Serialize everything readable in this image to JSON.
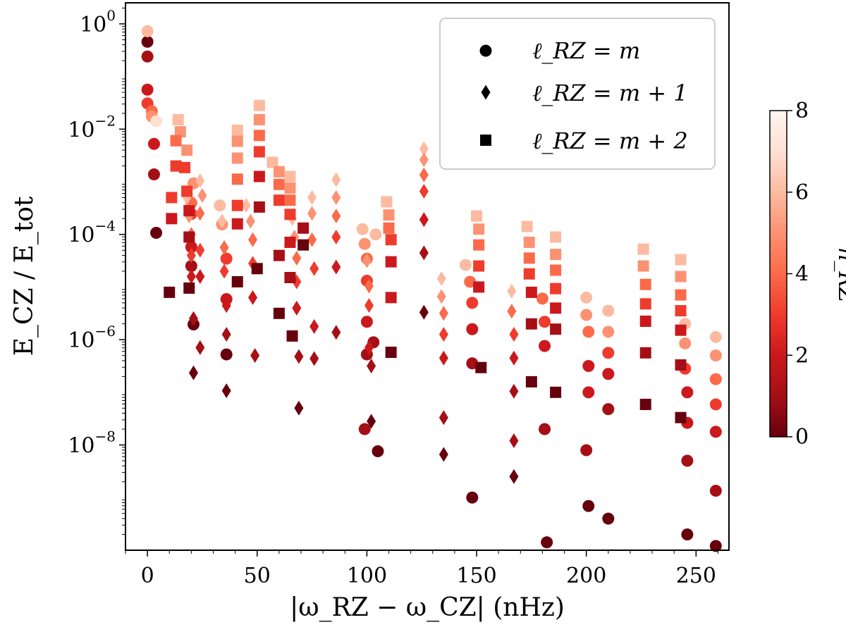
{
  "chart_data": {
    "type": "scatter",
    "title": "",
    "xlabel": "|ω_RZ − ω_CZ| (nHz)",
    "ylabel": "E_CZ / E_tot",
    "xlim": [
      -10,
      265
    ],
    "ylim_log10": [
      -10,
      0.4
    ],
    "yscale": "log",
    "x_ticks": [
      0,
      50,
      100,
      150,
      200,
      250
    ],
    "x_tick_labels": [
      "0",
      "50",
      "100",
      "150",
      "200",
      "250"
    ],
    "y_ticks_log10": [
      0,
      -2,
      -4,
      -6,
      -8
    ],
    "y_tick_labels": [
      {
        "base": "10",
        "exp": "0"
      },
      {
        "base": "10",
        "exp": "−2"
      },
      {
        "base": "10",
        "exp": "−4"
      },
      {
        "base": "10",
        "exp": "−6"
      },
      {
        "base": "10",
        "exp": "−8"
      }
    ],
    "legend": {
      "position": "top-right",
      "entries": [
        {
          "marker": "circle",
          "label": "ℓ_RZ = m"
        },
        {
          "marker": "diamond",
          "label": "ℓ_RZ = m + 1"
        },
        {
          "marker": "square",
          "label": "ℓ_RZ = m + 2"
        }
      ]
    },
    "colorbar": {
      "label": "n_RZ",
      "range": [
        0,
        8
      ],
      "ticks": [
        0,
        2,
        4,
        6,
        8
      ],
      "colormap": [
        "#67000d",
        "#a50f15",
        "#cb181d",
        "#ef3b2c",
        "#fb6a4a",
        "#fc9272",
        "#fcbba1",
        "#fee0d2",
        "#fff5f0"
      ]
    },
    "series": [
      {
        "name": "ℓ_RZ = m",
        "marker": "circle",
        "points": [
          [
            0,
            -0.34,
            0
          ],
          [
            0,
            -0.62,
            1
          ],
          [
            0,
            -1.25,
            2
          ],
          [
            0,
            -1.51,
            3
          ],
          [
            2,
            -1.66,
            4
          ],
          [
            2,
            -1.76,
            5
          ],
          [
            0,
            -0.14,
            6
          ],
          [
            4,
            -1.85,
            7
          ],
          [
            3,
            -2.28,
            2
          ],
          [
            3,
            -2.86,
            1
          ],
          [
            4,
            -3.97,
            0
          ],
          [
            20,
            -3.4,
            4
          ],
          [
            21,
            -3.03,
            5
          ],
          [
            20,
            -3.61,
            3
          ],
          [
            20,
            -4.24,
            2
          ],
          [
            20,
            -4.6,
            1
          ],
          [
            21,
            -5.71,
            0
          ],
          [
            33,
            -3.45,
            6
          ],
          [
            34,
            -3.81,
            5
          ],
          [
            36,
            -4.46,
            3
          ],
          [
            36,
            -5.23,
            2
          ],
          [
            36,
            -6.28,
            0
          ],
          [
            98,
            -3.9,
            6
          ],
          [
            99,
            -4.18,
            5
          ],
          [
            100,
            -4.46,
            4
          ],
          [
            100,
            -4.88,
            3
          ],
          [
            100,
            -5.66,
            2
          ],
          [
            100,
            -6.28,
            1
          ],
          [
            99,
            -7.7,
            1
          ],
          [
            104,
            -4.0,
            6
          ],
          [
            103,
            -6.05,
            1
          ],
          [
            105,
            -8.12,
            0
          ],
          [
            145,
            -4.58,
            6
          ],
          [
            147,
            -4.9,
            4
          ],
          [
            148,
            -5.3,
            3
          ],
          [
            148,
            -5.8,
            2
          ],
          [
            148,
            -6.45,
            1
          ],
          [
            148,
            -9.0,
            0
          ],
          [
            180,
            -5.22,
            4
          ],
          [
            181,
            -5.66,
            3
          ],
          [
            181,
            -6.12,
            2
          ],
          [
            181,
            -7.7,
            1
          ],
          [
            182,
            -9.85,
            0
          ],
          [
            200,
            -5.2,
            6
          ],
          [
            200,
            -5.53,
            5
          ],
          [
            201,
            -5.85,
            4
          ],
          [
            201,
            -6.5,
            2
          ],
          [
            201,
            -7.0,
            2
          ],
          [
            200,
            -8.1,
            1
          ],
          [
            201,
            -9.16,
            0
          ],
          [
            210,
            -5.45,
            6
          ],
          [
            210,
            -5.85,
            5
          ],
          [
            210,
            -6.25,
            3
          ],
          [
            210,
            -6.65,
            2
          ],
          [
            210,
            -7.32,
            1
          ],
          [
            210,
            -9.4,
            0
          ],
          [
            245,
            -5.7,
            6
          ],
          [
            245,
            -6.07,
            5
          ],
          [
            245,
            -6.55,
            3
          ],
          [
            246,
            -7.0,
            2
          ],
          [
            246,
            -7.58,
            2
          ],
          [
            246,
            -8.3,
            1
          ],
          [
            246,
            -9.7,
            0
          ],
          [
            259,
            -5.95,
            6
          ],
          [
            259,
            -6.3,
            5
          ],
          [
            259,
            -6.75,
            4
          ],
          [
            259,
            -7.23,
            3
          ],
          [
            259,
            -7.75,
            2
          ],
          [
            259,
            -8.87,
            1
          ],
          [
            259,
            -9.92,
            0
          ]
        ]
      },
      {
        "name": "ℓ_RZ = m + 1",
        "marker": "diamond",
        "points": [
          [
            18,
            -3.3,
            6
          ],
          [
            19,
            -3.65,
            5
          ],
          [
            20,
            -4.0,
            4
          ],
          [
            20,
            -4.4,
            3
          ],
          [
            20,
            -4.8,
            2
          ],
          [
            21,
            -5.6,
            1
          ],
          [
            21,
            -6.63,
            0
          ],
          [
            24,
            -2.98,
            6
          ],
          [
            25,
            -3.26,
            5
          ],
          [
            24,
            -3.6,
            4
          ],
          [
            24,
            -4.3,
            3
          ],
          [
            24,
            -4.8,
            2
          ],
          [
            24,
            -6.15,
            1
          ],
          [
            34,
            -3.75,
            6
          ],
          [
            35,
            -4.25,
            4
          ],
          [
            35,
            -4.7,
            3
          ],
          [
            36,
            -5.35,
            2
          ],
          [
            36,
            -5.9,
            1
          ],
          [
            36,
            -6.97,
            0
          ],
          [
            45,
            -3.45,
            6
          ],
          [
            47,
            -3.75,
            5
          ],
          [
            48,
            -4.1,
            4
          ],
          [
            48,
            -4.55,
            3
          ],
          [
            48,
            -5.2,
            2
          ],
          [
            49,
            -6.3,
            1
          ],
          [
            66,
            -3.7,
            6
          ],
          [
            67,
            -4.05,
            5
          ],
          [
            68,
            -4.45,
            4
          ],
          [
            68,
            -4.9,
            3
          ],
          [
            68,
            -5.4,
            2
          ],
          [
            69,
            -6.32,
            1
          ],
          [
            69,
            -7.3,
            0
          ],
          [
            75,
            -3.3,
            6
          ],
          [
            75,
            -3.6,
            5
          ],
          [
            75,
            -4.1,
            4
          ],
          [
            76,
            -4.65,
            3
          ],
          [
            76,
            -5.75,
            2
          ],
          [
            76,
            -6.36,
            1
          ],
          [
            86,
            -2.96,
            6
          ],
          [
            86,
            -3.3,
            5
          ],
          [
            86,
            -3.65,
            4
          ],
          [
            86,
            -4.05,
            3
          ],
          [
            86,
            -4.62,
            2
          ],
          [
            86,
            -5.86,
            1
          ],
          [
            100,
            -4.5,
            5
          ],
          [
            101,
            -4.98,
            4
          ],
          [
            101,
            -5.35,
            3
          ],
          [
            101,
            -6.15,
            2
          ],
          [
            102,
            -6.5,
            1
          ],
          [
            102,
            -7.55,
            0
          ],
          [
            126,
            -2.37,
            6
          ],
          [
            126,
            -2.58,
            5
          ],
          [
            126,
            -2.87,
            4
          ],
          [
            126,
            -3.18,
            3
          ],
          [
            126,
            -3.72,
            2
          ],
          [
            126,
            -4.35,
            1
          ],
          [
            126,
            -5.48,
            0
          ],
          [
            134,
            -4.84,
            6
          ],
          [
            134,
            -5.18,
            5
          ],
          [
            135,
            -5.5,
            4
          ],
          [
            135,
            -5.9,
            3
          ],
          [
            135,
            -6.35,
            2
          ],
          [
            135,
            -7.48,
            1
          ],
          [
            135,
            -8.18,
            0
          ],
          [
            166,
            -5.08,
            6
          ],
          [
            166,
            -5.46,
            4
          ],
          [
            167,
            -5.9,
            3
          ],
          [
            167,
            -6.35,
            2
          ],
          [
            167,
            -6.98,
            1
          ],
          [
            167,
            -7.92,
            1
          ],
          [
            167,
            -8.6,
            0
          ]
        ]
      },
      {
        "name": "ℓ_RZ = m + 2",
        "marker": "square",
        "points": [
          [
            10,
            -5.1,
            0
          ],
          [
            14,
            -1.82,
            6
          ],
          [
            15,
            -2.05,
            5
          ],
          [
            13,
            -2.22,
            4
          ],
          [
            13,
            -2.7,
            3
          ],
          [
            11,
            -3.3,
            3
          ],
          [
            11,
            -3.7,
            2
          ],
          [
            18,
            -2.4,
            5
          ],
          [
            17,
            -2.73,
            3
          ],
          [
            18,
            -3.18,
            3
          ],
          [
            19,
            -3.55,
            2
          ],
          [
            19,
            -4.05,
            1
          ],
          [
            19,
            -5.02,
            0
          ],
          [
            41,
            -2.02,
            6
          ],
          [
            41,
            -2.23,
            5
          ],
          [
            41,
            -2.55,
            5
          ],
          [
            41,
            -2.95,
            4
          ],
          [
            41,
            -3.45,
            3
          ],
          [
            41,
            -3.8,
            2
          ],
          [
            41,
            -4.9,
            0
          ],
          [
            51,
            -1.55,
            6
          ],
          [
            51,
            -1.82,
            5
          ],
          [
            51,
            -2.12,
            4
          ],
          [
            51,
            -2.43,
            3
          ],
          [
            51,
            -2.9,
            2
          ],
          [
            51,
            -3.48,
            1
          ],
          [
            50,
            -4.65,
            0
          ],
          [
            57,
            -2.63,
            6
          ],
          [
            60,
            -2.81,
            5
          ],
          [
            60,
            -3.05,
            4
          ],
          [
            60,
            -3.35,
            3
          ],
          [
            60,
            -4.4,
            1
          ],
          [
            60,
            -5.5,
            0
          ],
          [
            65,
            -2.9,
            6
          ],
          [
            65,
            -3.12,
            5
          ],
          [
            65,
            -3.35,
            4
          ],
          [
            65,
            -3.62,
            3
          ],
          [
            65,
            -4.15,
            2
          ],
          [
            65,
            -4.82,
            1
          ],
          [
            66,
            -5.93,
            0
          ],
          [
            71,
            -3.88,
            1
          ],
          [
            71,
            -4.2,
            0
          ],
          [
            109,
            -3.38,
            6
          ],
          [
            110,
            -3.63,
            5
          ],
          [
            110,
            -3.88,
            4
          ],
          [
            111,
            -4.1,
            3
          ],
          [
            111,
            -4.52,
            2
          ],
          [
            111,
            -5.2,
            2
          ],
          [
            111,
            -6.24,
            0
          ],
          [
            150,
            -3.65,
            6
          ],
          [
            151,
            -3.9,
            5
          ],
          [
            151,
            -4.2,
            4
          ],
          [
            151,
            -4.6,
            3
          ],
          [
            151,
            -5.0,
            2
          ],
          [
            152,
            -6.53,
            0
          ],
          [
            173,
            -3.85,
            6
          ],
          [
            174,
            -4.15,
            5
          ],
          [
            174,
            -4.45,
            4
          ],
          [
            174,
            -4.75,
            3
          ],
          [
            175,
            -5.1,
            2
          ],
          [
            175,
            -5.7,
            1
          ],
          [
            175,
            -6.8,
            0
          ],
          [
            186,
            -4.05,
            6
          ],
          [
            186,
            -4.38,
            5
          ],
          [
            186,
            -4.68,
            4
          ],
          [
            186,
            -5.03,
            3
          ],
          [
            186,
            -5.4,
            2
          ],
          [
            186,
            -5.8,
            1
          ],
          [
            186,
            -7.0,
            0
          ],
          [
            226,
            -4.28,
            6
          ],
          [
            226,
            -4.6,
            5
          ],
          [
            227,
            -4.95,
            4
          ],
          [
            227,
            -5.32,
            3
          ],
          [
            227,
            -5.65,
            2
          ],
          [
            227,
            -6.25,
            1
          ],
          [
            227,
            -7.23,
            0
          ],
          [
            243,
            -4.48,
            6
          ],
          [
            243,
            -4.8,
            5
          ],
          [
            243,
            -5.15,
            4
          ],
          [
            243,
            -5.45,
            3
          ],
          [
            243,
            -5.82,
            2
          ],
          [
            243,
            -6.48,
            1
          ],
          [
            243,
            -7.48,
            0
          ]
        ]
      }
    ]
  }
}
